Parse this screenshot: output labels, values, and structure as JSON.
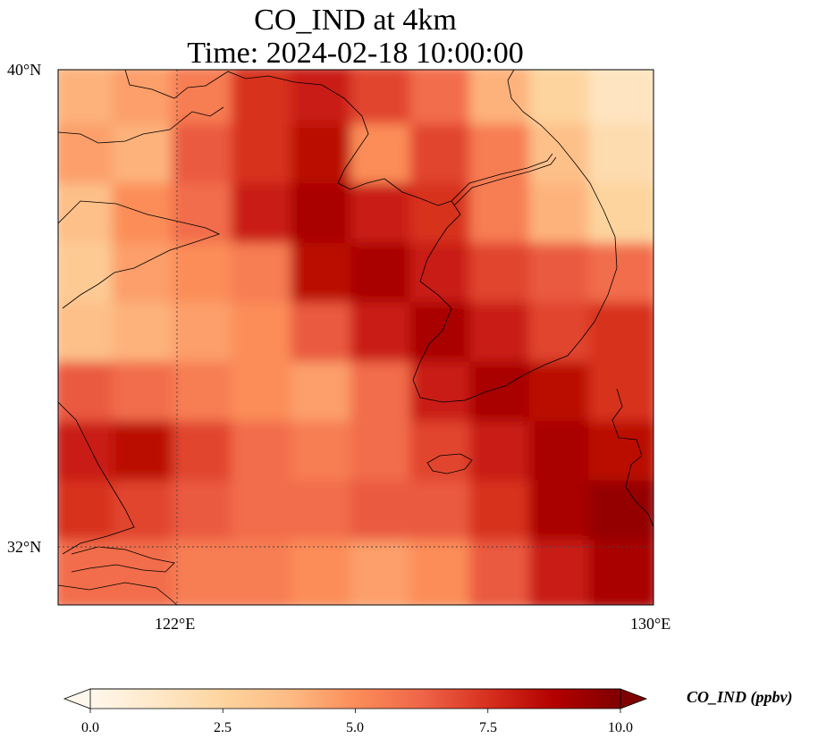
{
  "title": {
    "line1": "CO_IND at 4km",
    "line2": "Time: 2024-02-18 10:00:00"
  },
  "axes": {
    "lat_labels": [
      "40°N",
      "32°N"
    ],
    "lon_labels": [
      "122°E",
      "130°E"
    ],
    "lat_range": [
      31,
      40
    ],
    "lon_range": [
      120,
      130
    ]
  },
  "colorbar": {
    "label": "CO_IND (ppbv)",
    "ticks": [
      "0.0",
      "2.5",
      "5.0",
      "7.5",
      "10.0"
    ],
    "range": [
      0,
      10
    ],
    "extend": "both",
    "colormap": "OrRd",
    "colors": [
      "#fff7ec",
      "#fee8c8",
      "#fdd49e",
      "#fdbb84",
      "#fc8d59",
      "#ef6548",
      "#d7301f",
      "#b30000",
      "#7f0000"
    ]
  },
  "chart_data": {
    "type": "heatmap",
    "title": "CO_IND at 4km\nTime: 2024-02-18 10:00:00",
    "variable": "CO_IND",
    "units": "ppbv",
    "xlabel": "",
    "ylabel": "",
    "xlim": [
      120,
      130
    ],
    "ylim": [
      31,
      40
    ],
    "vmin": 0,
    "vmax": 10,
    "gridlines": {
      "lon": [
        122
      ],
      "lat": [
        32
      ]
    },
    "field_lons": [
      120.5,
      121.5,
      122.5,
      123.5,
      124.5,
      125.5,
      126.5,
      127.5,
      128.5,
      129.5
    ],
    "field_lats": [
      39.5,
      38.5,
      37.5,
      36.5,
      35.5,
      34.5,
      33.5,
      32.5,
      31.5
    ],
    "field_values": [
      [
        4.0,
        4.5,
        5.5,
        7.5,
        8.0,
        7.0,
        6.0,
        4.0,
        2.5,
        1.5
      ],
      [
        4.5,
        4.0,
        6.5,
        7.5,
        8.5,
        5.0,
        7.0,
        5.5,
        3.5,
        2.0
      ],
      [
        3.5,
        5.0,
        6.0,
        8.0,
        9.0,
        8.0,
        7.5,
        5.5,
        4.0,
        2.5
      ],
      [
        3.0,
        4.5,
        5.0,
        5.5,
        8.5,
        9.0,
        8.0,
        7.0,
        6.5,
        6.0
      ],
      [
        3.5,
        4.0,
        4.5,
        5.0,
        6.5,
        8.0,
        9.0,
        8.0,
        7.0,
        7.5
      ],
      [
        6.5,
        6.0,
        5.5,
        5.0,
        4.5,
        6.0,
        8.0,
        9.0,
        8.5,
        7.5
      ],
      [
        8.0,
        8.5,
        7.0,
        6.0,
        5.5,
        6.0,
        7.0,
        8.0,
        9.0,
        8.5
      ],
      [
        7.5,
        7.0,
        6.5,
        6.0,
        6.0,
        6.5,
        6.5,
        7.5,
        9.0,
        9.5
      ],
      [
        6.0,
        6.0,
        5.5,
        5.5,
        5.0,
        4.5,
        5.0,
        6.5,
        8.0,
        9.0
      ]
    ]
  }
}
